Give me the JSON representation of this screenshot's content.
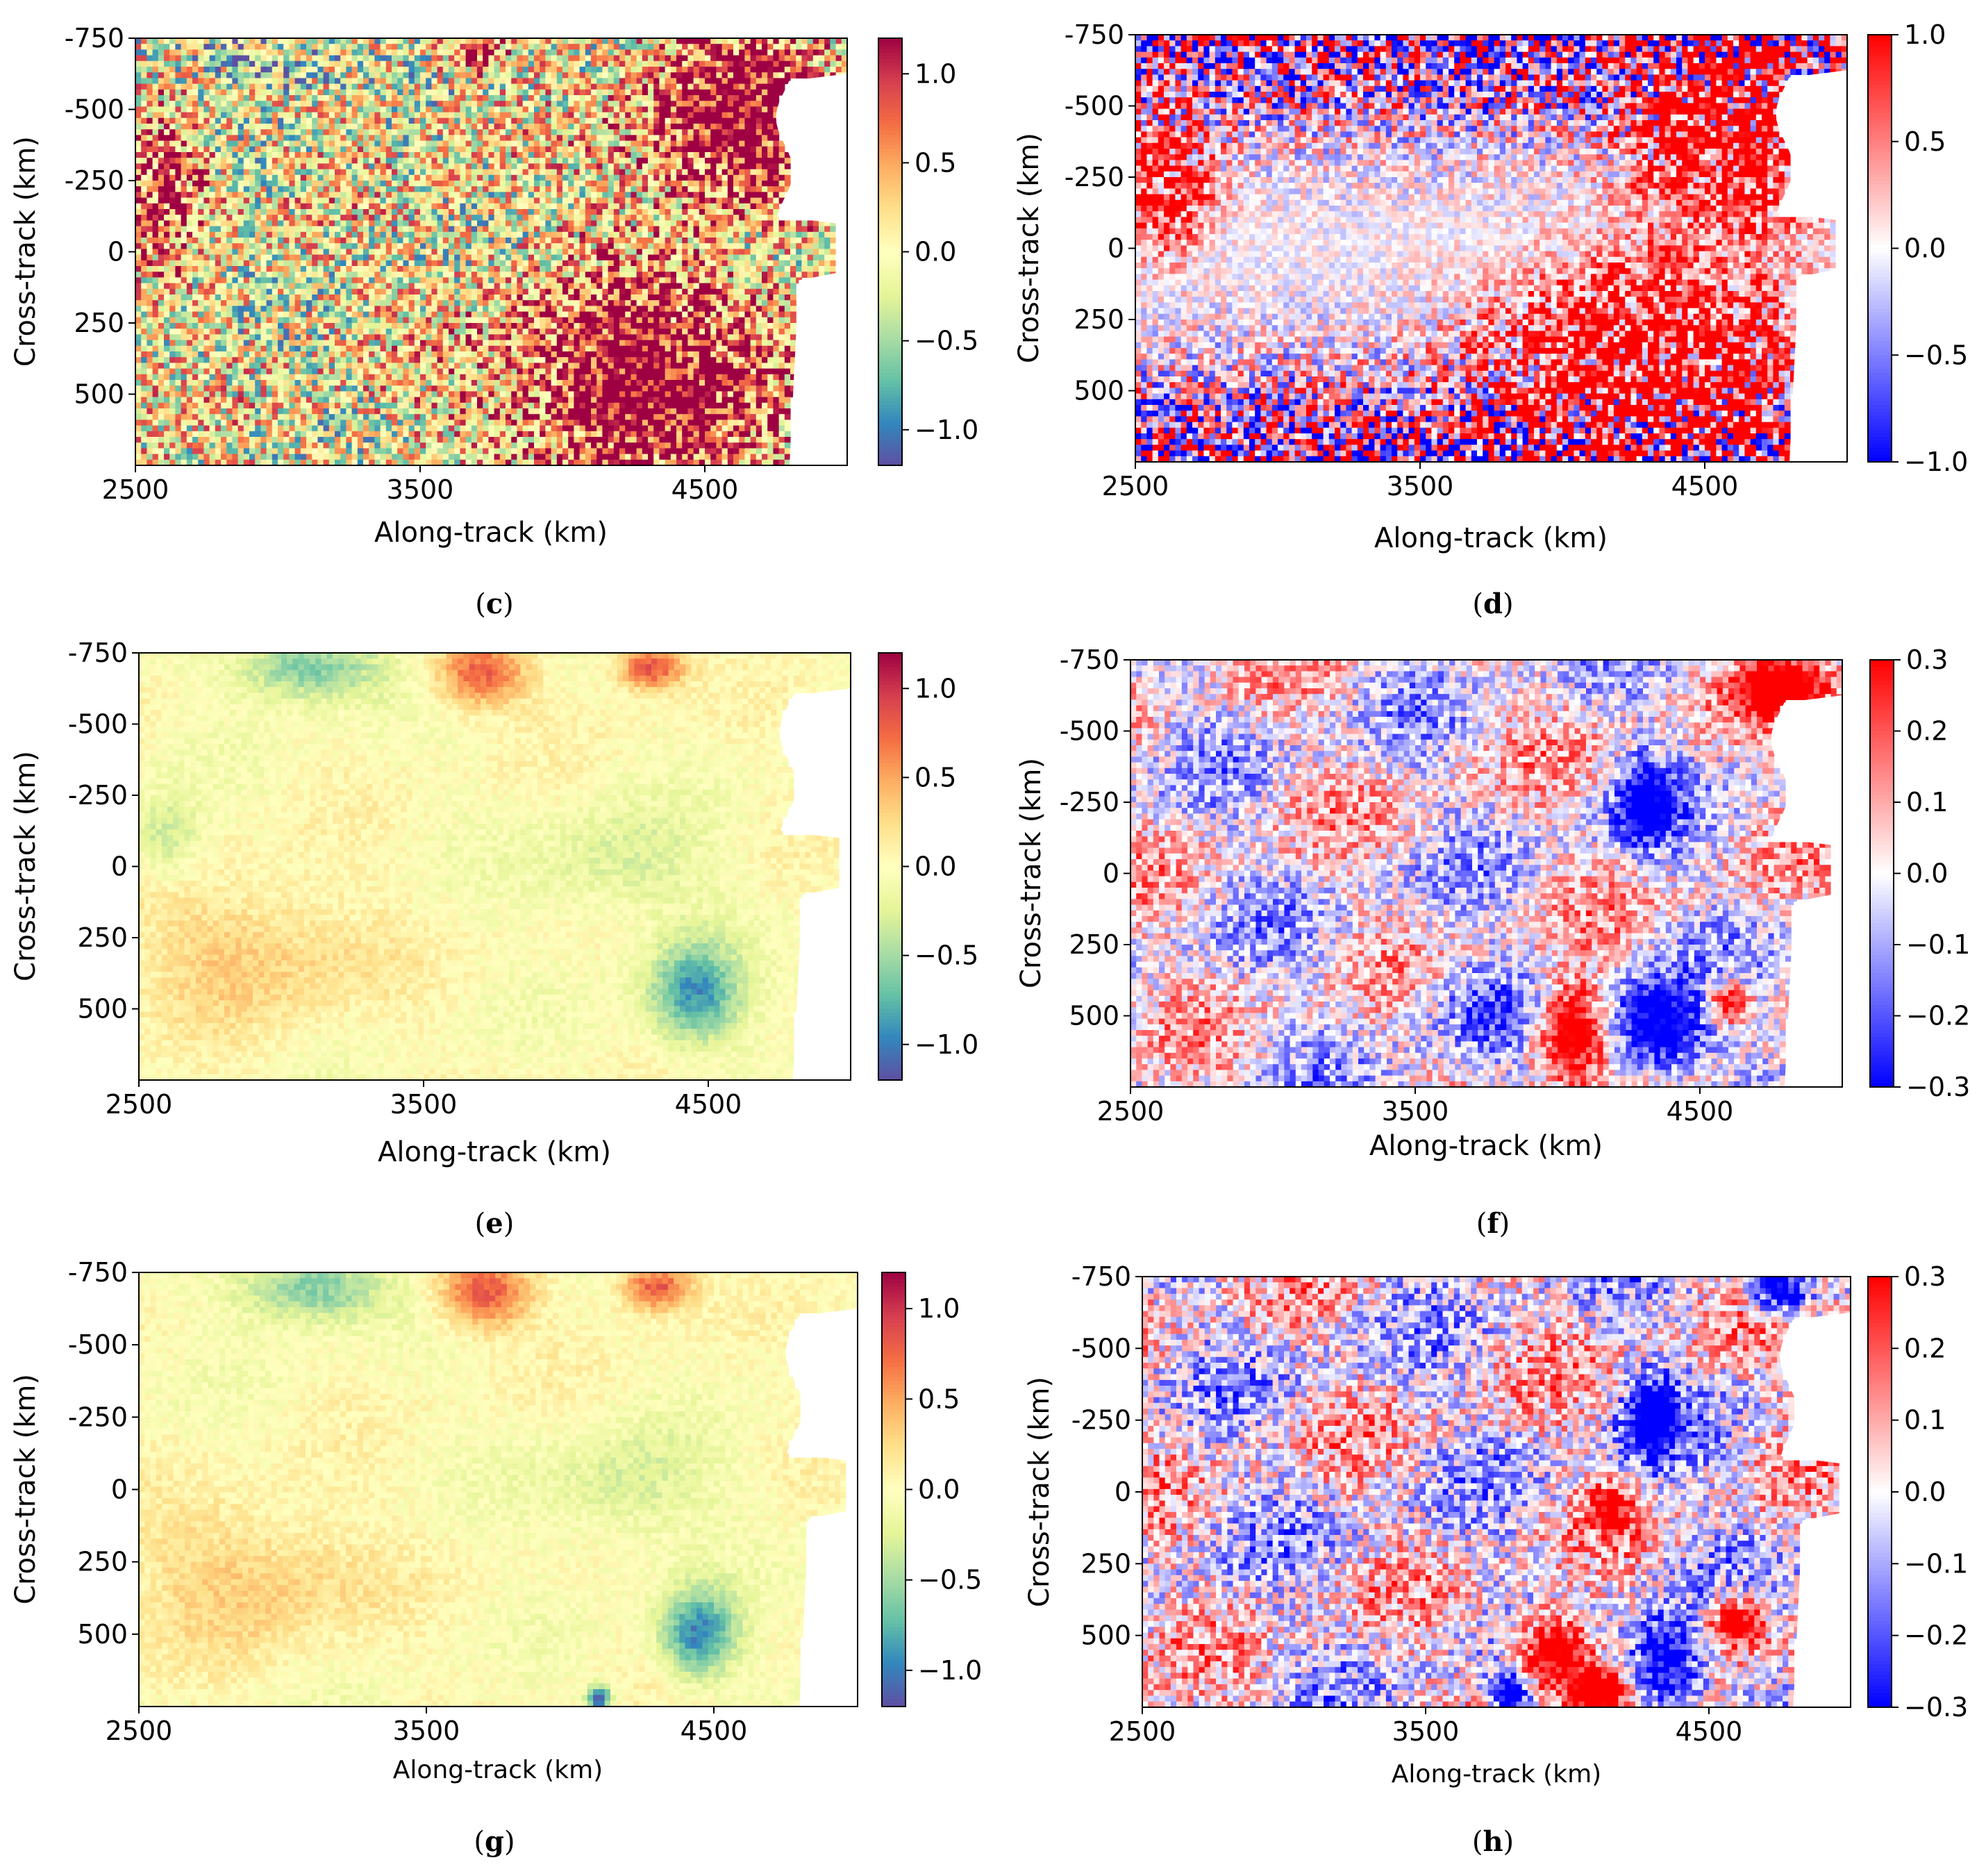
{
  "figure": {
    "palettes": {
      "spectral": [
        "#5e4fa2",
        "#3288bd",
        "#66c2a5",
        "#abdda4",
        "#e6f598",
        "#ffffbf",
        "#fee08b",
        "#fdae61",
        "#f46d43",
        "#d53e4f",
        "#9e0142"
      ],
      "bwr": [
        "#0000ff",
        "#ffffff",
        "#ff0000"
      ]
    },
    "mask_color": "#ffffff"
  },
  "chart_data": [
    {
      "id": "c",
      "panel_label": "c",
      "type": "heatmap",
      "title": "",
      "xlabel": "Along-track (km)",
      "ylabel": "Cross-track (km)",
      "xlim": [
        2500,
        5000
      ],
      "ylim": [
        -750,
        750
      ],
      "xticks": [
        2500,
        3500,
        4500
      ],
      "xtick_labels": [
        "2500",
        "3500",
        "4500"
      ],
      "yticks": [
        -750,
        -500,
        -250,
        0,
        250,
        500
      ],
      "ytick_labels": [
        "-750",
        "-500",
        "-250",
        "0",
        "250",
        "500"
      ],
      "colormap": "Spectral_r",
      "clim": [
        -1.2,
        1.2
      ],
      "cbar_ticks": [
        1.0,
        0.5,
        0.0,
        -0.5,
        -1.0
      ],
      "cbar_tick_labels": [
        "1.0",
        "0.5",
        "0.0",
        "−0.5",
        "−1.0"
      ],
      "field": {
        "noise": 1.0,
        "smooth": 0.5,
        "blobs": [
          {
            "x": 4300,
            "y": 450,
            "rx": 500,
            "ry": 350,
            "v": 1.5
          },
          {
            "x": 4600,
            "y": -450,
            "rx": 320,
            "ry": 350,
            "v": 1.4
          },
          {
            "x": 2600,
            "y": -250,
            "rx": 150,
            "ry": 250,
            "v": 1.0
          },
          {
            "x": 3700,
            "y": -700,
            "rx": 120,
            "ry": 80,
            "v": 0.9
          },
          {
            "x": 3000,
            "y": -700,
            "rx": 300,
            "ry": 120,
            "v": -0.6
          },
          {
            "x": 4700,
            "y": -30,
            "rx": 200,
            "ry": 140,
            "v": -0.5
          }
        ]
      }
    },
    {
      "id": "d",
      "panel_label": "d",
      "type": "heatmap",
      "title": "",
      "xlabel": "Along-track (km)",
      "ylabel": "Cross-track (km)",
      "xlim": [
        2500,
        5000
      ],
      "ylim": [
        -750,
        750
      ],
      "xticks": [
        2500,
        3500,
        4500
      ],
      "xtick_labels": [
        "2500",
        "3500",
        "4500"
      ],
      "yticks": [
        -750,
        -500,
        -250,
        0,
        250,
        500
      ],
      "ytick_labels": [
        "-750",
        "-500",
        "-250",
        "0",
        "250",
        "500"
      ],
      "colormap": "bwr",
      "clim": [
        -1.0,
        1.0
      ],
      "cbar_ticks": [
        1.0,
        0.5,
        0.0,
        -0.5,
        -1.0
      ],
      "cbar_tick_labels": [
        "1.0",
        "0.5",
        "0.0",
        "−0.5",
        "−1.0"
      ],
      "field": {
        "noise": 1.0,
        "sign_noise": true,
        "edge_noise": 1.8,
        "blobs": [
          {
            "x": 4300,
            "y": 450,
            "rx": 500,
            "ry": 350,
            "v": 1.6
          },
          {
            "x": 4600,
            "y": -450,
            "rx": 320,
            "ry": 350,
            "v": 1.5
          },
          {
            "x": 2600,
            "y": -250,
            "rx": 160,
            "ry": 250,
            "v": 1.1
          }
        ]
      }
    },
    {
      "id": "e",
      "panel_label": "e",
      "type": "heatmap",
      "title": "",
      "xlabel": "Along-track (km)",
      "ylabel": "Cross-track (km)",
      "xlim": [
        2500,
        5000
      ],
      "ylim": [
        -750,
        750
      ],
      "xticks": [
        2500,
        3500,
        4500
      ],
      "xtick_labels": [
        "2500",
        "3500",
        "4500"
      ],
      "yticks": [
        -750,
        -500,
        -250,
        0,
        250,
        500
      ],
      "ytick_labels": [
        "-750",
        "-500",
        "-250",
        "0",
        "250",
        "500"
      ],
      "colormap": "Spectral_r",
      "clim": [
        -1.2,
        1.2
      ],
      "cbar_ticks": [
        1.0,
        0.5,
        0.0,
        -0.5,
        -1.0
      ],
      "cbar_tick_labels": [
        "1.0",
        "0.5",
        "0.0",
        "−0.5",
        "−1.0"
      ],
      "field": {
        "noise": 0.12,
        "smooth": 0.35,
        "blobs": [
          {
            "x": 3700,
            "y": -680,
            "rx": 160,
            "ry": 120,
            "v": 0.8
          },
          {
            "x": 4300,
            "y": -700,
            "rx": 120,
            "ry": 80,
            "v": 0.9
          },
          {
            "x": 3100,
            "y": -700,
            "rx": 250,
            "ry": 120,
            "v": -0.7
          },
          {
            "x": 2600,
            "y": -100,
            "rx": 120,
            "ry": 150,
            "v": -0.4
          },
          {
            "x": 4450,
            "y": 450,
            "rx": 160,
            "ry": 180,
            "v": -0.9
          },
          {
            "x": 4200,
            "y": 0,
            "rx": 300,
            "ry": 200,
            "v": -0.3
          },
          {
            "x": 2900,
            "y": 300,
            "rx": 400,
            "ry": 250,
            "v": 0.35
          }
        ]
      }
    },
    {
      "id": "f",
      "panel_label": "f",
      "type": "heatmap",
      "title": "",
      "xlabel": "Along-track (km)",
      "ylabel": "Cross-track (km)",
      "xlim": [
        2500,
        5000
      ],
      "ylim": [
        -750,
        750
      ],
      "xticks": [
        2500,
        3500,
        4500
      ],
      "xtick_labels": [
        "2500",
        "3500",
        "4500"
      ],
      "yticks": [
        -750,
        -500,
        -250,
        0,
        250,
        500
      ],
      "ytick_labels": [
        "-750",
        "-500",
        "-250",
        "0",
        "250",
        "500"
      ],
      "colormap": "bwr",
      "clim": [
        -0.3,
        0.3
      ],
      "cbar_ticks": [
        0.3,
        0.2,
        0.1,
        0.0,
        -0.1,
        -0.2,
        -0.3
      ],
      "cbar_tick_labels": [
        "0.3",
        "0.2",
        "0.1",
        "0.0",
        "−0.1",
        "−0.2",
        "−0.3"
      ],
      "field": {
        "noise": 0.15,
        "smooth": 0.5,
        "blobs": [
          {
            "x": 4050,
            "y": 550,
            "rx": 130,
            "ry": 170,
            "v": 0.5
          },
          {
            "x": 4350,
            "y": 550,
            "rx": 180,
            "ry": 170,
            "v": -0.5
          },
          {
            "x": 4600,
            "y": 450,
            "rx": 80,
            "ry": 80,
            "v": 0.4
          },
          {
            "x": 4800,
            "y": -650,
            "rx": 150,
            "ry": 100,
            "v": 0.5
          },
          {
            "x": 4300,
            "y": -250,
            "rx": 100,
            "ry": 150,
            "v": -0.35
          },
          {
            "x": 3700,
            "y": 450,
            "rx": 200,
            "ry": 150,
            "v": -0.15
          }
        ]
      }
    },
    {
      "id": "g",
      "panel_label": "g",
      "type": "heatmap",
      "title": "",
      "xlabel": "Along-track (km)",
      "ylabel": "Cross-track (km)",
      "xlim": [
        2500,
        5000
      ],
      "ylim": [
        -750,
        750
      ],
      "xticks": [
        2500,
        3500,
        4500
      ],
      "xtick_labels": [
        "2500",
        "3500",
        "4500"
      ],
      "yticks": [
        -750,
        -500,
        -250,
        0,
        250,
        500
      ],
      "ytick_labels": [
        "-750",
        "-500",
        "-250",
        "0",
        "250",
        "500"
      ],
      "colormap": "Spectral_r",
      "clim": [
        -1.2,
        1.2
      ],
      "cbar_ticks": [
        1.0,
        0.5,
        0.0,
        -0.5,
        -1.0
      ],
      "cbar_tick_labels": [
        "1.0",
        "0.5",
        "0.0",
        "−0.5",
        "−1.0"
      ],
      "field": {
        "noise": 0.12,
        "smooth": 0.35,
        "blobs": [
          {
            "x": 3700,
            "y": -680,
            "rx": 160,
            "ry": 120,
            "v": 0.85
          },
          {
            "x": 4300,
            "y": -700,
            "rx": 120,
            "ry": 80,
            "v": 0.9
          },
          {
            "x": 3100,
            "y": -700,
            "rx": 250,
            "ry": 120,
            "v": -0.7
          },
          {
            "x": 4450,
            "y": 500,
            "rx": 130,
            "ry": 150,
            "v": -1.0
          },
          {
            "x": 4100,
            "y": 720,
            "rx": 40,
            "ry": 40,
            "v": -1.3
          },
          {
            "x": 4200,
            "y": 0,
            "rx": 300,
            "ry": 200,
            "v": -0.3
          },
          {
            "x": 2900,
            "y": 300,
            "rx": 400,
            "ry": 250,
            "v": 0.35
          }
        ]
      }
    },
    {
      "id": "h",
      "panel_label": "h",
      "type": "heatmap",
      "title": "",
      "xlabel": "Along-track (km)",
      "ylabel": "Cross-track (km)",
      "xlim": [
        2500,
        5000
      ],
      "ylim": [
        -750,
        750
      ],
      "xticks": [
        2500,
        3500,
        4500
      ],
      "xtick_labels": [
        "2500",
        "3500",
        "4500"
      ],
      "yticks": [
        -750,
        -500,
        -250,
        0,
        250,
        500
      ],
      "ytick_labels": [
        "-750",
        "-500",
        "-250",
        "0",
        "250",
        "500"
      ],
      "colormap": "bwr",
      "clim": [
        -0.3,
        0.3
      ],
      "cbar_ticks": [
        0.3,
        0.2,
        0.1,
        0.0,
        -0.1,
        -0.2,
        -0.3
      ],
      "cbar_tick_labels": [
        "0.3",
        "0.2",
        "0.1",
        "0.0",
        "−0.1",
        "−0.2",
        "−0.3"
      ],
      "field": {
        "noise": 0.18,
        "smooth": 0.5,
        "blobs": [
          {
            "x": 3950,
            "y": 550,
            "rx": 130,
            "ry": 130,
            "v": 0.55
          },
          {
            "x": 4100,
            "y": 700,
            "rx": 100,
            "ry": 80,
            "v": 0.55
          },
          {
            "x": 3800,
            "y": 700,
            "rx": 60,
            "ry": 60,
            "v": -0.5
          },
          {
            "x": 4350,
            "y": 600,
            "rx": 130,
            "ry": 160,
            "v": -0.5
          },
          {
            "x": 4600,
            "y": 450,
            "rx": 100,
            "ry": 100,
            "v": 0.45
          },
          {
            "x": 4750,
            "y": -700,
            "rx": 100,
            "ry": 80,
            "v": -0.5
          },
          {
            "x": 4300,
            "y": -250,
            "rx": 100,
            "ry": 150,
            "v": -0.4
          },
          {
            "x": 4150,
            "y": 50,
            "rx": 80,
            "ry": 80,
            "v": 0.3
          }
        ]
      }
    }
  ]
}
